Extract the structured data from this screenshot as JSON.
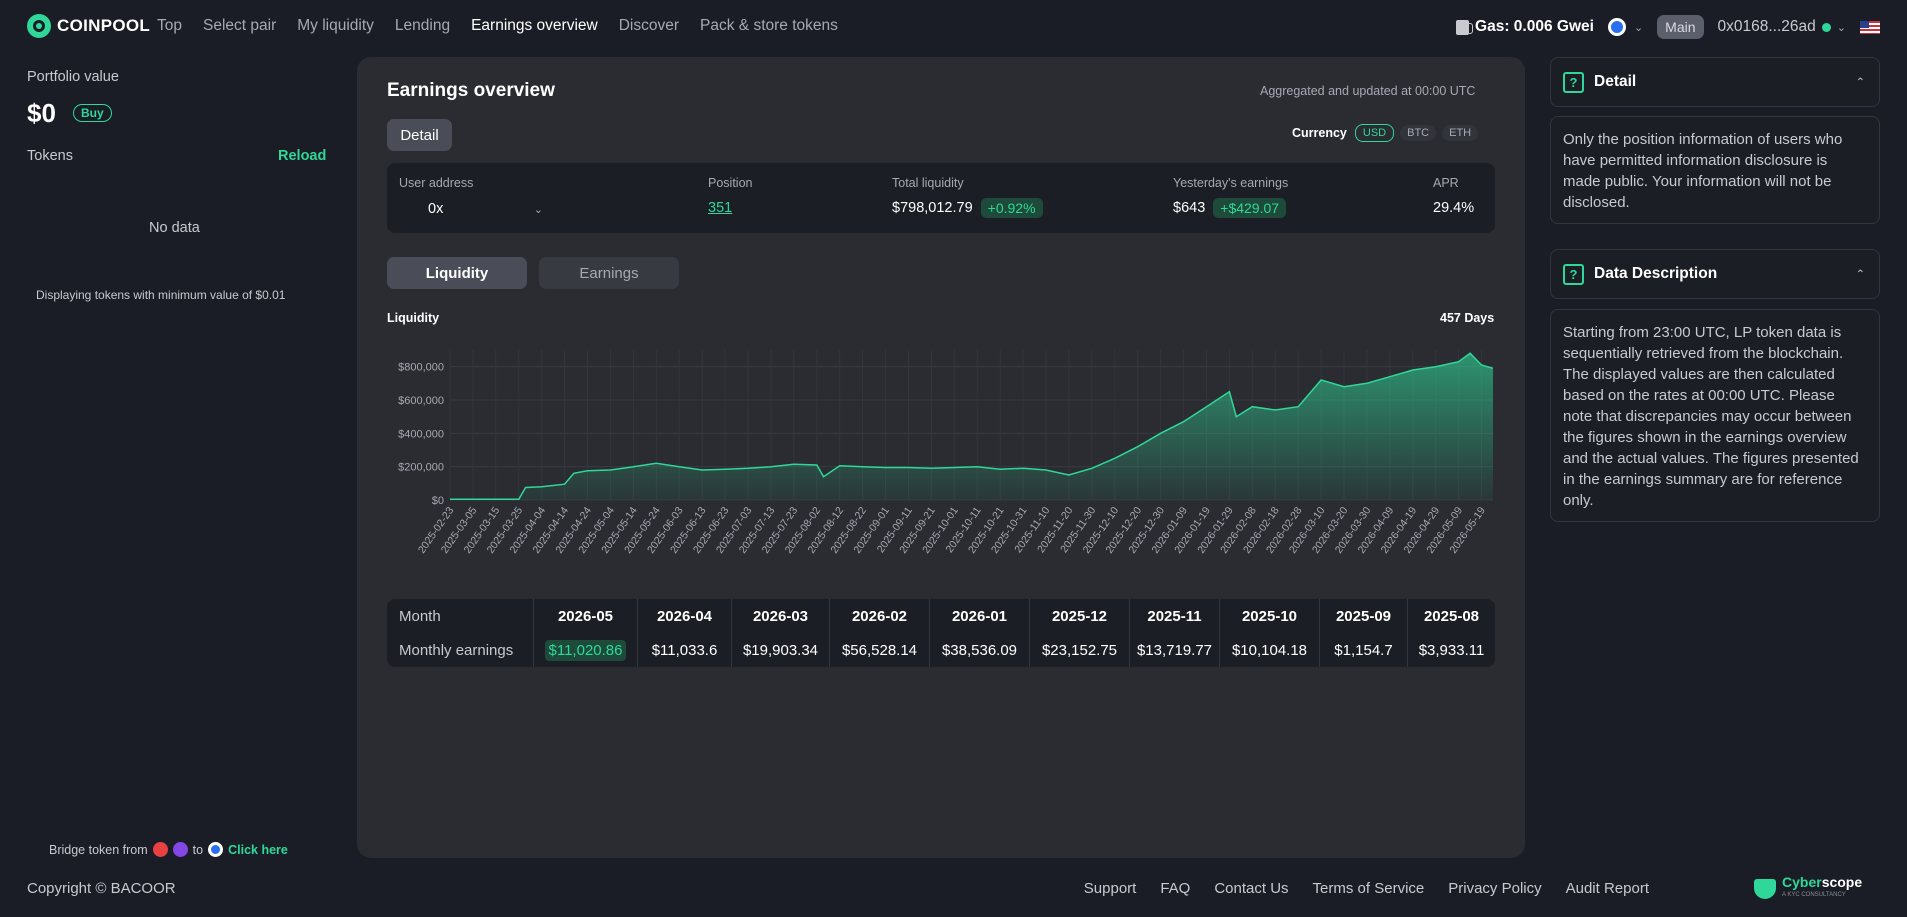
{
  "header": {
    "logo_text": "COINPOOL",
    "nav": [
      "Top",
      "Select pair",
      "My liquidity",
      "Lending",
      "Earnings overview",
      "Discover",
      "Pack & store tokens"
    ],
    "active_nav": "Earnings overview",
    "gas": "Gas: 0.006 Gwei",
    "network": "Main",
    "wallet": "0x0168...26ad",
    "icons": [
      "gas-pump-icon",
      "chain-icon",
      "chevron-down-icon",
      "us-flag-icon"
    ]
  },
  "sidebar": {
    "portfolio_label": "Portfolio value",
    "portfolio_value": "$0",
    "buy_label": "Buy",
    "tokens_label": "Tokens",
    "reload_label": "Reload",
    "no_data": "No data",
    "min_value_note": "Displaying tokens with minimum value of $0.01",
    "bridge_prefix": "Bridge token from",
    "bridge_to": "to",
    "bridge_link": "Click here"
  },
  "main": {
    "title": "Earnings overview",
    "updated": "Aggregated and updated at 00:00 UTC",
    "detail_tab": "Detail",
    "currency_label": "Currency",
    "currencies": [
      "USD",
      "BTC",
      "ETH"
    ],
    "active_currency": "USD",
    "info": {
      "user_address_label": "User address",
      "user_address_value": "0x",
      "position_label": "Position",
      "position_value": "351",
      "total_liquidity_label": "Total liquidity",
      "total_liquidity_value": "$798,012.79",
      "total_liquidity_change": "+0.92%",
      "yesterday_label": "Yesterday's earnings",
      "yesterday_value": "$643",
      "yesterday_change": "+$429.07",
      "apr_label": "APR",
      "apr_value": "29.4%"
    },
    "seg_tabs": [
      "Liquidity",
      "Earnings"
    ],
    "active_seg": "Liquidity",
    "chart_label": "Liquidity",
    "days_label": "457 Days",
    "monthly": {
      "month_label": "Month",
      "earnings_label": "Monthly earnings",
      "months": [
        "2026-05",
        "2026-04",
        "2026-03",
        "2026-02",
        "2026-01",
        "2025-12",
        "2025-11",
        "2025-10",
        "2025-09",
        "2025-08"
      ],
      "earnings": [
        "$11,020.86",
        "$11,033.6",
        "$19,903.34",
        "$56,528.14",
        "$38,536.09",
        "$23,152.75",
        "$13,719.77",
        "$10,104.18",
        "$1,154.7",
        "$3,933.11"
      ]
    }
  },
  "chart_data": {
    "type": "area",
    "ylim": [
      0,
      900000
    ],
    "y_ticks": [
      "$0",
      "$200,000",
      "$400,000",
      "$600,000",
      "$800,000"
    ],
    "y_tick_values": [
      0,
      200000,
      400000,
      600000,
      800000
    ],
    "x_ticks": [
      "2025-02-23",
      "2025-03-05",
      "2025-03-15",
      "2025-03-25",
      "2025-04-04",
      "2025-04-14",
      "2025-04-24",
      "2025-05-04",
      "2025-05-14",
      "2025-05-24",
      "2025-06-03",
      "2025-06-13",
      "2025-06-23",
      "2025-07-03",
      "2025-07-13",
      "2025-07-23",
      "2025-08-02",
      "2025-08-12",
      "2025-08-22",
      "2025-09-01",
      "2025-09-11",
      "2025-09-21",
      "2025-10-01",
      "2025-10-11",
      "2025-10-21",
      "2025-10-31",
      "2025-11-10",
      "2025-11-20",
      "2025-11-30",
      "2025-12-10",
      "2025-12-20",
      "2025-12-30",
      "2026-01-09",
      "2026-01-19",
      "2026-01-29",
      "2026-02-08",
      "2026-02-18",
      "2026-02-28",
      "2026-03-10",
      "2026-03-20",
      "2026-03-30",
      "2026-04-09",
      "2026-04-19",
      "2026-04-29",
      "2026-05-09",
      "2026-05-19"
    ],
    "x": [
      "2025-02-23",
      "2025-03-05",
      "2025-03-15",
      "2025-03-25",
      "2025-03-28",
      "2025-04-04",
      "2025-04-14",
      "2025-04-18",
      "2025-04-24",
      "2025-05-04",
      "2025-05-14",
      "2025-05-24",
      "2025-06-03",
      "2025-06-13",
      "2025-06-23",
      "2025-07-03",
      "2025-07-13",
      "2025-07-23",
      "2025-08-02",
      "2025-08-05",
      "2025-08-12",
      "2025-08-22",
      "2025-09-01",
      "2025-09-11",
      "2025-09-21",
      "2025-10-01",
      "2025-10-11",
      "2025-10-21",
      "2025-10-31",
      "2025-11-10",
      "2025-11-20",
      "2025-11-30",
      "2025-12-10",
      "2025-12-20",
      "2025-12-30",
      "2026-01-09",
      "2026-01-19",
      "2026-01-29",
      "2026-02-01",
      "2026-02-08",
      "2026-02-18",
      "2026-02-28",
      "2026-03-10",
      "2026-03-20",
      "2026-03-30",
      "2026-04-09",
      "2026-04-19",
      "2026-04-29",
      "2026-05-09",
      "2026-05-14",
      "2026-05-19",
      "2026-05-24"
    ],
    "y": [
      5000,
      5000,
      5000,
      5000,
      75000,
      80000,
      95000,
      160000,
      175000,
      180000,
      200000,
      220000,
      200000,
      180000,
      185000,
      190000,
      200000,
      215000,
      210000,
      140000,
      205000,
      200000,
      195000,
      195000,
      190000,
      195000,
      200000,
      185000,
      190000,
      180000,
      150000,
      190000,
      250000,
      320000,
      400000,
      470000,
      560000,
      650000,
      500000,
      560000,
      540000,
      560000,
      720000,
      680000,
      700000,
      740000,
      780000,
      800000,
      830000,
      880000,
      810000,
      790000
    ],
    "series_color": "#2fd898",
    "grid": true
  }
}
